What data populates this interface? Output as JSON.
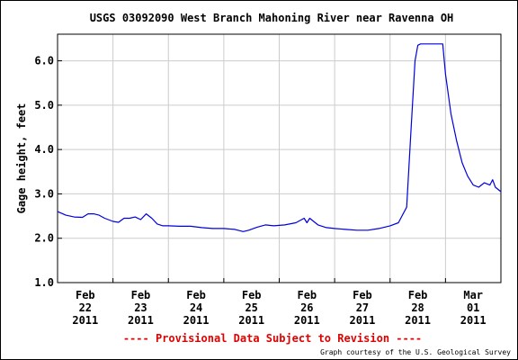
{
  "chart_data": {
    "type": "line",
    "title": "USGS 03092090 West Branch Mahoning River near Ravenna OH",
    "ylabel": "Gage height, feet",
    "xlabel": "",
    "ylim": [
      1.0,
      6.6
    ],
    "xlim": [
      0,
      8
    ],
    "yticks": [
      1.0,
      2.0,
      3.0,
      4.0,
      5.0,
      6.0
    ],
    "ytick_labels": [
      "1.0",
      "2.0",
      "3.0",
      "4.0",
      "5.0",
      "6.0"
    ],
    "x_tick_positions": [
      0.5,
      1.5,
      2.5,
      3.5,
      4.5,
      5.5,
      6.5,
      7.5
    ],
    "x_tick_labels": [
      {
        "month": "Feb",
        "day": "22",
        "year": "2011"
      },
      {
        "month": "Feb",
        "day": "23",
        "year": "2011"
      },
      {
        "month": "Feb",
        "day": "24",
        "year": "2011"
      },
      {
        "month": "Feb",
        "day": "25",
        "year": "2011"
      },
      {
        "month": "Feb",
        "day": "26",
        "year": "2011"
      },
      {
        "month": "Feb",
        "day": "27",
        "year": "2011"
      },
      {
        "month": "Feb",
        "day": "28",
        "year": "2011"
      },
      {
        "month": "Mar",
        "day": "01",
        "year": "2011"
      }
    ],
    "grid": true,
    "line_color": "#0000dd",
    "series": [
      {
        "x": [
          0,
          0.15,
          0.3,
          0.45,
          0.55,
          0.65,
          0.75,
          0.85,
          1.0,
          1.1,
          1.2,
          1.3,
          1.4,
          1.5,
          1.6,
          1.7,
          1.8,
          1.9,
          2.0,
          2.2,
          2.4,
          2.6,
          2.8,
          3.0,
          3.2,
          3.35,
          3.45,
          3.6,
          3.75,
          3.9,
          4.1,
          4.3,
          4.45,
          4.5,
          4.55,
          4.6,
          4.7,
          4.85,
          5.0,
          5.2,
          5.4,
          5.6,
          5.8,
          6.0,
          6.15,
          6.3,
          6.38,
          6.45,
          6.5,
          6.55,
          6.6,
          6.7,
          6.95,
          7.0,
          7.1,
          7.2,
          7.3,
          7.4,
          7.5,
          7.6,
          7.7,
          7.8,
          7.85,
          7.9,
          8.0
        ],
        "y": [
          2.6,
          2.52,
          2.48,
          2.47,
          2.55,
          2.55,
          2.52,
          2.45,
          2.38,
          2.36,
          2.45,
          2.45,
          2.48,
          2.42,
          2.55,
          2.45,
          2.32,
          2.28,
          2.28,
          2.27,
          2.27,
          2.24,
          2.22,
          2.22,
          2.2,
          2.15,
          2.18,
          2.25,
          2.3,
          2.28,
          2.3,
          2.35,
          2.45,
          2.35,
          2.45,
          2.4,
          2.3,
          2.24,
          2.22,
          2.2,
          2.18,
          2.18,
          2.22,
          2.28,
          2.35,
          2.7,
          4.5,
          6.0,
          6.35,
          6.38,
          6.38,
          6.38,
          6.38,
          5.7,
          4.8,
          4.2,
          3.7,
          3.4,
          3.2,
          3.15,
          3.25,
          3.2,
          3.32,
          3.15,
          3.05
        ]
      }
    ]
  },
  "footer": {
    "provisional": "---- Provisional Data Subject to Revision ----",
    "credit": "Graph courtesy of the U.S. Geological Survey"
  }
}
